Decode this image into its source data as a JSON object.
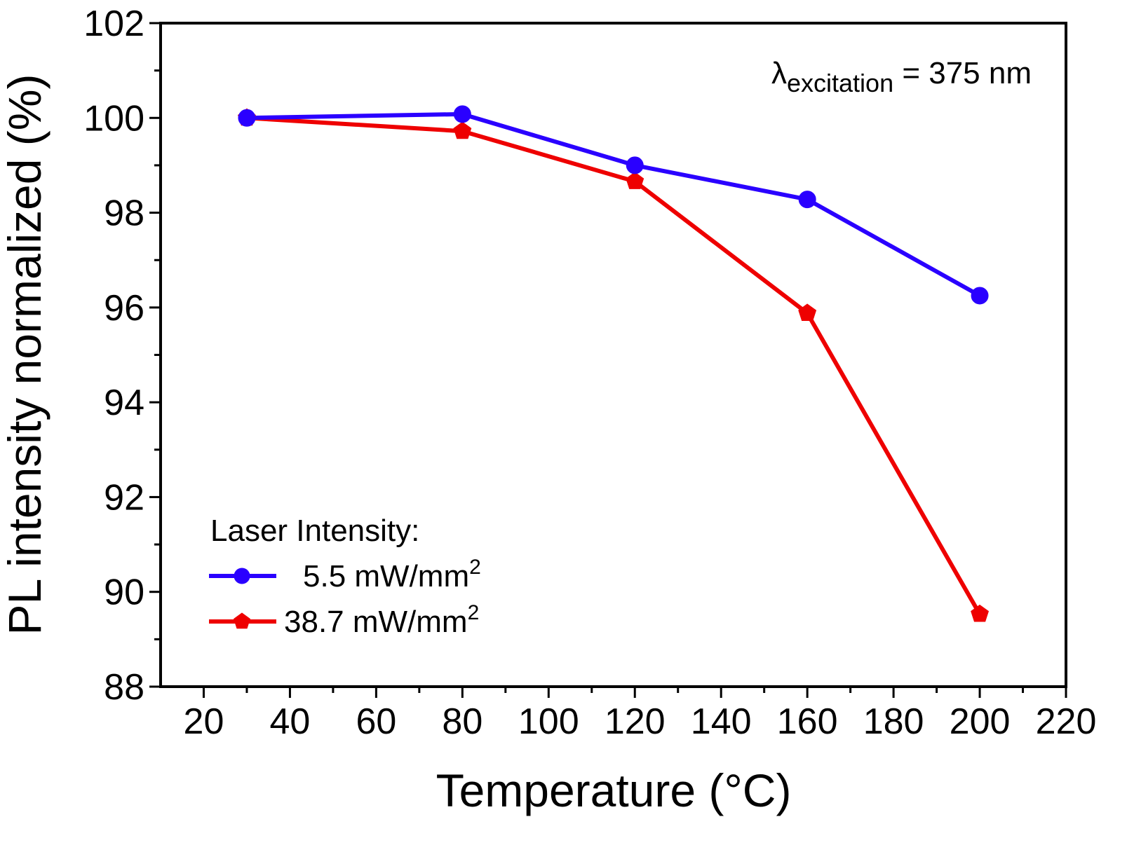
{
  "chart_data": {
    "type": "line",
    "title": "",
    "xlabel": "Temperature (°C)",
    "ylabel": "PL intensity normalized (%)",
    "xlim": [
      10,
      220
    ],
    "ylim": [
      88,
      102
    ],
    "xticks": [
      20,
      40,
      60,
      80,
      100,
      120,
      140,
      160,
      180,
      200,
      220
    ],
    "yticks": [
      88,
      90,
      92,
      94,
      96,
      98,
      100,
      102
    ],
    "grid": false,
    "annotation": {
      "symbol": "λ",
      "subscript": "excitation",
      "text": " = 375 nm"
    },
    "legend": {
      "title": "Laser Intensity:",
      "position": "bottom-left",
      "entries": [
        {
          "label": "5.5 mW/mm",
          "superscript": "2"
        },
        {
          "label": "38.7 mW/mm",
          "superscript": "2"
        }
      ]
    },
    "series": [
      {
        "name": "5.5 mW/mm2",
        "color": "#2a00ff",
        "marker": "circle",
        "x": [
          30,
          80,
          120,
          160,
          200
        ],
        "y": [
          100.0,
          100.08,
          99.0,
          98.28,
          96.25
        ]
      },
      {
        "name": "38.7 mW/mm2",
        "color": "#ee0000",
        "marker": "pentagon",
        "x": [
          30,
          80,
          120,
          160,
          200
        ],
        "y": [
          100.0,
          99.72,
          98.66,
          95.88,
          89.53
        ]
      }
    ]
  }
}
